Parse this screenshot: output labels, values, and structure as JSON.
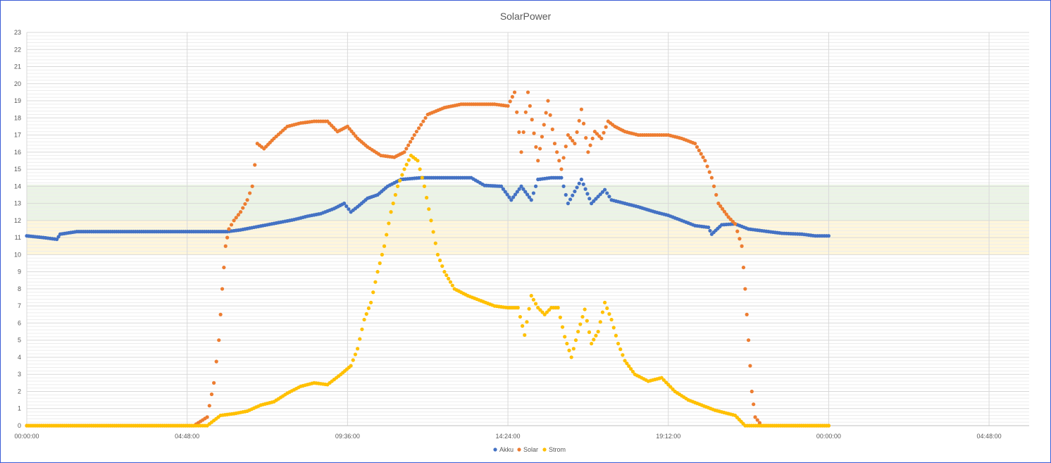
{
  "chart_data": {
    "type": "scatter",
    "title": "SolarPower",
    "xlabel": "",
    "ylabel": "",
    "x_unit": "hours",
    "xlim": [
      0,
      30
    ],
    "ylim": [
      0,
      23
    ],
    "yticks": [
      0,
      1,
      2,
      3,
      4,
      5,
      6,
      7,
      8,
      9,
      10,
      11,
      12,
      13,
      14,
      15,
      16,
      17,
      18,
      19,
      20,
      21,
      22,
      23
    ],
    "xticks": [
      0,
      4.8,
      9.6,
      14.4,
      19.2,
      24,
      28.8
    ],
    "xtick_labels": [
      "00:00:00",
      "04:48:00",
      "09:36:00",
      "14:24:00",
      "19:12:00",
      "00:00:00",
      "04:48:00"
    ],
    "grid": true,
    "legend_position": "bottom",
    "bands": [
      {
        "from": 12,
        "to": 14.1,
        "color": "#e2efda"
      },
      {
        "from": 10,
        "to": 12,
        "color": "#fff2cc"
      }
    ],
    "series": [
      {
        "name": "Akku",
        "color": "#4472c4",
        "points": [
          [
            0.0,
            11.1
          ],
          [
            0.5,
            11.0
          ],
          [
            0.9,
            10.9
          ],
          [
            1.0,
            11.2
          ],
          [
            1.5,
            11.35
          ],
          [
            2.5,
            11.35
          ],
          [
            3.5,
            11.35
          ],
          [
            4.5,
            11.35
          ],
          [
            5.5,
            11.35
          ],
          [
            6.0,
            11.35
          ],
          [
            6.4,
            11.45
          ],
          [
            6.8,
            11.6
          ],
          [
            7.2,
            11.75
          ],
          [
            7.6,
            11.9
          ],
          [
            8.0,
            12.05
          ],
          [
            8.4,
            12.25
          ],
          [
            8.8,
            12.4
          ],
          [
            9.2,
            12.7
          ],
          [
            9.5,
            13.0
          ],
          [
            9.7,
            12.5
          ],
          [
            9.9,
            12.8
          ],
          [
            10.2,
            13.3
          ],
          [
            10.5,
            13.5
          ],
          [
            10.8,
            14.0
          ],
          [
            11.2,
            14.4
          ],
          [
            11.8,
            14.5
          ],
          [
            12.6,
            14.5
          ],
          [
            13.3,
            14.5
          ],
          [
            13.7,
            14.05
          ],
          [
            14.2,
            14.0
          ],
          [
            14.5,
            13.2
          ],
          [
            14.8,
            14.0
          ],
          [
            15.1,
            13.2
          ],
          [
            15.3,
            14.4
          ],
          [
            15.7,
            14.5
          ],
          [
            16.0,
            14.5
          ],
          [
            16.2,
            13.0
          ],
          [
            16.6,
            14.4
          ],
          [
            16.9,
            13.0
          ],
          [
            17.3,
            13.8
          ],
          [
            17.5,
            13.2
          ],
          [
            17.9,
            13.0
          ],
          [
            18.3,
            12.8
          ],
          [
            18.8,
            12.5
          ],
          [
            19.2,
            12.3
          ],
          [
            19.6,
            12.0
          ],
          [
            20.0,
            11.7
          ],
          [
            20.4,
            11.6
          ],
          [
            20.5,
            11.2
          ],
          [
            20.8,
            11.75
          ],
          [
            21.2,
            11.8
          ],
          [
            21.6,
            11.5
          ],
          [
            22.0,
            11.4
          ],
          [
            22.6,
            11.25
          ],
          [
            23.2,
            11.2
          ],
          [
            23.6,
            11.1
          ],
          [
            24.0,
            11.1
          ]
        ]
      },
      {
        "name": "Solar",
        "color": "#ed7d31",
        "points": [
          [
            0.0,
            0.0
          ],
          [
            1.0,
            0.0
          ],
          [
            2.0,
            0.0
          ],
          [
            3.0,
            0.0
          ],
          [
            4.0,
            0.0
          ],
          [
            5.0,
            0.0
          ],
          [
            5.4,
            0.5
          ],
          [
            5.6,
            2.5
          ],
          [
            5.75,
            5.0
          ],
          [
            5.85,
            8.0
          ],
          [
            5.95,
            10.5
          ],
          [
            6.05,
            11.5
          ],
          [
            6.2,
            12.0
          ],
          [
            6.4,
            12.5
          ],
          [
            6.6,
            13.2
          ],
          [
            6.75,
            14.0
          ],
          [
            6.9,
            16.5
          ],
          [
            7.1,
            16.2
          ],
          [
            7.4,
            16.8
          ],
          [
            7.8,
            17.5
          ],
          [
            8.2,
            17.7
          ],
          [
            8.6,
            17.8
          ],
          [
            9.0,
            17.8
          ],
          [
            9.3,
            17.2
          ],
          [
            9.6,
            17.5
          ],
          [
            9.9,
            16.8
          ],
          [
            10.2,
            16.3
          ],
          [
            10.6,
            15.8
          ],
          [
            11.0,
            15.7
          ],
          [
            11.3,
            16.0
          ],
          [
            11.6,
            17.0
          ],
          [
            12.0,
            18.2
          ],
          [
            12.5,
            18.6
          ],
          [
            13.0,
            18.8
          ],
          [
            13.5,
            18.8
          ],
          [
            14.0,
            18.8
          ],
          [
            14.4,
            18.7
          ],
          [
            14.6,
            19.5
          ],
          [
            14.8,
            16.0
          ],
          [
            15.0,
            19.5
          ],
          [
            15.3,
            15.5
          ],
          [
            15.6,
            19.0
          ],
          [
            15.8,
            16.5
          ],
          [
            16.0,
            15.0
          ],
          [
            16.2,
            17.0
          ],
          [
            16.4,
            16.5
          ],
          [
            16.6,
            18.5
          ],
          [
            16.8,
            16.0
          ],
          [
            17.0,
            17.2
          ],
          [
            17.2,
            16.8
          ],
          [
            17.4,
            17.8
          ],
          [
            17.6,
            17.5
          ],
          [
            17.9,
            17.2
          ],
          [
            18.3,
            17.0
          ],
          [
            18.8,
            17.0
          ],
          [
            19.2,
            17.0
          ],
          [
            19.6,
            16.8
          ],
          [
            20.0,
            16.5
          ],
          [
            20.3,
            15.5
          ],
          [
            20.5,
            14.5
          ],
          [
            20.7,
            13.0
          ],
          [
            21.0,
            12.2
          ],
          [
            21.2,
            11.8
          ],
          [
            21.4,
            10.5
          ],
          [
            21.5,
            8.0
          ],
          [
            21.6,
            5.0
          ],
          [
            21.7,
            2.0
          ],
          [
            21.8,
            0.5
          ],
          [
            22.0,
            0.0
          ],
          [
            23.0,
            0.0
          ],
          [
            24.0,
            0.0
          ]
        ]
      },
      {
        "name": "Strom",
        "color": "#ffc000",
        "points": [
          [
            0.0,
            0.0
          ],
          [
            1.0,
            0.0
          ],
          [
            2.0,
            0.0
          ],
          [
            3.0,
            0.0
          ],
          [
            4.0,
            0.0
          ],
          [
            5.0,
            0.0
          ],
          [
            5.4,
            0.0
          ],
          [
            5.8,
            0.6
          ],
          [
            6.2,
            0.7
          ],
          [
            6.6,
            0.85
          ],
          [
            7.0,
            1.2
          ],
          [
            7.4,
            1.4
          ],
          [
            7.8,
            1.9
          ],
          [
            8.2,
            2.3
          ],
          [
            8.6,
            2.5
          ],
          [
            9.0,
            2.4
          ],
          [
            9.4,
            3.0
          ],
          [
            9.7,
            3.5
          ],
          [
            9.9,
            4.5
          ],
          [
            10.1,
            6.2
          ],
          [
            10.3,
            7.2
          ],
          [
            10.5,
            9.0
          ],
          [
            10.7,
            10.5
          ],
          [
            10.9,
            12.5
          ],
          [
            11.1,
            14.0
          ],
          [
            11.3,
            15.0
          ],
          [
            11.5,
            15.8
          ],
          [
            11.7,
            15.5
          ],
          [
            11.9,
            14.0
          ],
          [
            12.1,
            12.0
          ],
          [
            12.3,
            10.0
          ],
          [
            12.5,
            9.0
          ],
          [
            12.8,
            8.0
          ],
          [
            13.2,
            7.6
          ],
          [
            13.6,
            7.3
          ],
          [
            14.0,
            7.0
          ],
          [
            14.4,
            6.9
          ],
          [
            14.7,
            6.9
          ],
          [
            14.9,
            5.3
          ],
          [
            15.1,
            7.6
          ],
          [
            15.3,
            6.9
          ],
          [
            15.5,
            6.5
          ],
          [
            15.7,
            6.9
          ],
          [
            15.9,
            6.9
          ],
          [
            16.1,
            5.2
          ],
          [
            16.3,
            4.0
          ],
          [
            16.5,
            5.5
          ],
          [
            16.7,
            6.8
          ],
          [
            16.9,
            4.8
          ],
          [
            17.1,
            5.5
          ],
          [
            17.3,
            7.2
          ],
          [
            17.5,
            6.2
          ],
          [
            17.7,
            4.8
          ],
          [
            17.9,
            3.8
          ],
          [
            18.2,
            3.0
          ],
          [
            18.6,
            2.6
          ],
          [
            19.0,
            2.8
          ],
          [
            19.4,
            2.0
          ],
          [
            19.8,
            1.5
          ],
          [
            20.2,
            1.2
          ],
          [
            20.6,
            0.9
          ],
          [
            21.0,
            0.7
          ],
          [
            21.2,
            0.6
          ],
          [
            21.5,
            0.0
          ],
          [
            22.0,
            0.0
          ],
          [
            23.0,
            0.0
          ],
          [
            24.0,
            0.0
          ]
        ]
      }
    ]
  }
}
